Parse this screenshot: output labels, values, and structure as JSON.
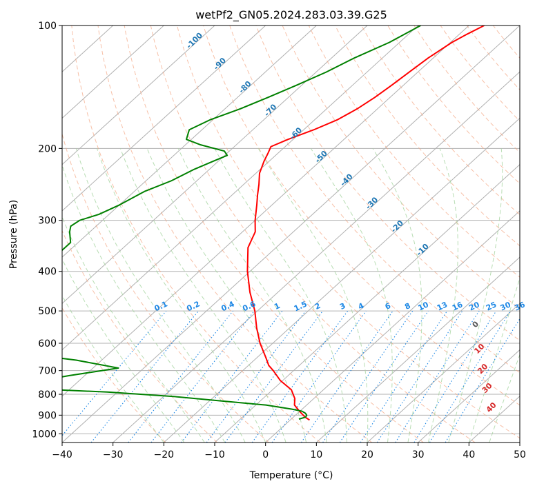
{
  "chart_data": {
    "type": "line",
    "chart_kind": "skew-t log-p",
    "title": "wetPf2_GN05.2024.283.03.39.G25",
    "xlabel": "Temperature (°C)",
    "ylabel": "Pressure (hPa)",
    "xlim": [
      -40,
      50
    ],
    "ylim": [
      1050,
      100
    ],
    "y_scale": "log",
    "grid": true,
    "x_ticks": [
      -40,
      -30,
      -20,
      -10,
      0,
      10,
      20,
      30,
      40,
      50
    ],
    "x_tick_labels": [
      "−40",
      "−30",
      "−20",
      "−10",
      "0",
      "10",
      "20",
      "30",
      "40",
      "50"
    ],
    "y_ticks": [
      100,
      200,
      300,
      400,
      500,
      600,
      700,
      800,
      900,
      1000
    ],
    "y_tick_labels": [
      "100",
      "200",
      "300",
      "400",
      "500",
      "600",
      "700",
      "800",
      "900",
      "1000"
    ],
    "dry_adiabat_labels": [
      "-100",
      "-90",
      "-80",
      "-70",
      "-60",
      "-50",
      "-40",
      "-30",
      "-20",
      "-10"
    ],
    "moist_adiabat_labels": [
      "0",
      "10",
      "20",
      "30",
      "40"
    ],
    "mixing_ratio_labels": [
      "0.1",
      "0.2",
      "0.4",
      "0.6",
      "1",
      "1.5",
      "2",
      "3",
      "4",
      "6",
      "8",
      "10",
      "13",
      "16",
      "20",
      "25",
      "30",
      "36"
    ],
    "series": [
      {
        "role": "temperature",
        "color": "#ff0000",
        "points": [
          [
            100,
            -47
          ],
          [
            105,
            -48.5
          ],
          [
            110,
            -49.7
          ],
          [
            120,
            -51
          ],
          [
            130,
            -51.7
          ],
          [
            140,
            -52.3
          ],
          [
            150,
            -53
          ],
          [
            160,
            -54
          ],
          [
            170,
            -55.5
          ],
          [
            180,
            -58
          ],
          [
            190,
            -61
          ],
          [
            198,
            -62.8
          ],
          [
            205,
            -62
          ],
          [
            215,
            -61
          ],
          [
            230,
            -59.3
          ],
          [
            245,
            -57
          ],
          [
            260,
            -55
          ],
          [
            275,
            -53
          ],
          [
            300,
            -50
          ],
          [
            320,
            -47.5
          ],
          [
            350,
            -45.5
          ],
          [
            400,
            -40.5
          ],
          [
            450,
            -35.5
          ],
          [
            500,
            -30.5
          ],
          [
            550,
            -26.5
          ],
          [
            600,
            -22.5
          ],
          [
            650,
            -18.3
          ],
          [
            680,
            -16
          ],
          [
            700,
            -14
          ],
          [
            740,
            -10.5
          ],
          [
            780,
            -6.3
          ],
          [
            820,
            -3.7
          ],
          [
            850,
            -2.4
          ],
          [
            880,
            -0.1
          ],
          [
            910,
            2.3
          ],
          [
            925,
            3.8
          ]
        ]
      },
      {
        "role": "dewpoint",
        "color": "#008000",
        "points": [
          [
            100,
            -59.5
          ],
          [
            110,
            -62
          ],
          [
            120,
            -65.5
          ],
          [
            130,
            -68
          ],
          [
            140,
            -71
          ],
          [
            150,
            -74
          ],
          [
            160,
            -77
          ],
          [
            170,
            -80.5
          ],
          [
            180,
            -82.5
          ],
          [
            190,
            -81
          ],
          [
            196,
            -77
          ],
          [
            203,
            -71
          ],
          [
            208,
            -69.5
          ],
          [
            215,
            -71
          ],
          [
            225,
            -73
          ],
          [
            240,
            -75
          ],
          [
            255,
            -78
          ],
          [
            275,
            -80
          ],
          [
            290,
            -82
          ],
          [
            300,
            -84.5
          ],
          [
            310,
            -85
          ],
          [
            320,
            -84
          ],
          [
            340,
            -81.5
          ],
          [
            360,
            -81.5
          ],
          [
            380,
            -82
          ],
          [
            400,
            -81.5
          ],
          [
            420,
            -81.5
          ],
          [
            440,
            -80.5
          ],
          [
            460,
            -80
          ],
          [
            480,
            -81
          ],
          [
            500,
            -76
          ],
          [
            520,
            -72
          ],
          [
            550,
            -72.5
          ],
          [
            580,
            -71.5
          ],
          [
            600,
            -71.5
          ],
          [
            630,
            -69.5
          ],
          [
            660,
            -55
          ],
          [
            690,
            -45
          ],
          [
            720,
            -53
          ],
          [
            750,
            -60
          ],
          [
            770,
            -63
          ],
          [
            790,
            -42
          ],
          [
            810,
            -28
          ],
          [
            830,
            -18
          ],
          [
            850,
            -8
          ],
          [
            870,
            -2
          ],
          [
            880,
            0.4
          ],
          [
            890,
            1.5
          ],
          [
            900,
            2.2
          ],
          [
            910,
            2.4
          ],
          [
            920,
            1.5
          ]
        ]
      }
    ]
  }
}
